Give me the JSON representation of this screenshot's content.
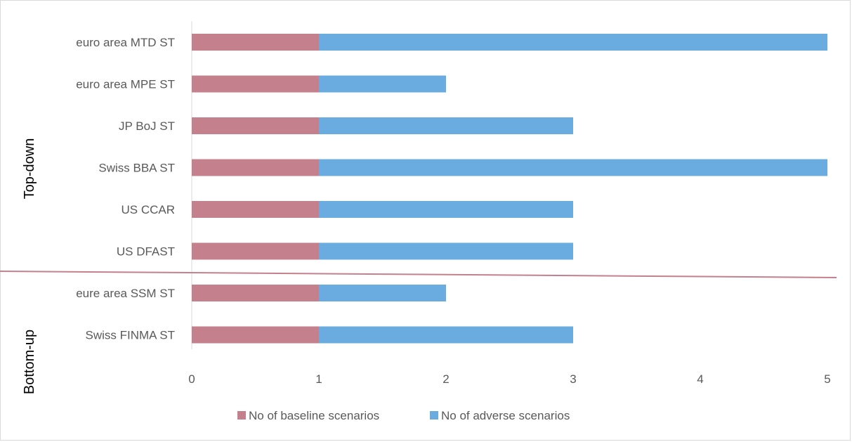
{
  "chart_data": {
    "type": "bar",
    "orientation": "horizontal",
    "stacked": true,
    "categories": [
      "euro area MTD ST",
      "euro area MPE ST",
      "JP BoJ ST",
      "Swiss BBA ST",
      "US CCAR",
      "US DFAST",
      "eure area SSM ST",
      "Swiss FINMA ST"
    ],
    "series": [
      {
        "name": "No of baseline scenarios",
        "values": [
          1,
          1,
          1,
          1,
          1,
          1,
          1,
          1
        ],
        "color": "#c4808d"
      },
      {
        "name": "No of adverse scenarios",
        "values": [
          4,
          1,
          2,
          4,
          2,
          2,
          1,
          2
        ],
        "color": "#6aace0"
      }
    ],
    "xlim": [
      0,
      5
    ],
    "x_ticks": [
      "0",
      "1",
      "2",
      "3",
      "4",
      "5"
    ],
    "groups": [
      {
        "label": "Top-down",
        "categories": [
          "euro area MTD ST",
          "euro area MPE ST",
          "JP BoJ ST",
          "Swiss BBA ST",
          "US CCAR",
          "US DFAST"
        ]
      },
      {
        "label": "Bottom-up",
        "categories": [
          "eure area SSM ST",
          "Swiss FINMA ST"
        ]
      }
    ],
    "separator_color": "#c4808d",
    "legend_position": "bottom",
    "grid": false
  }
}
